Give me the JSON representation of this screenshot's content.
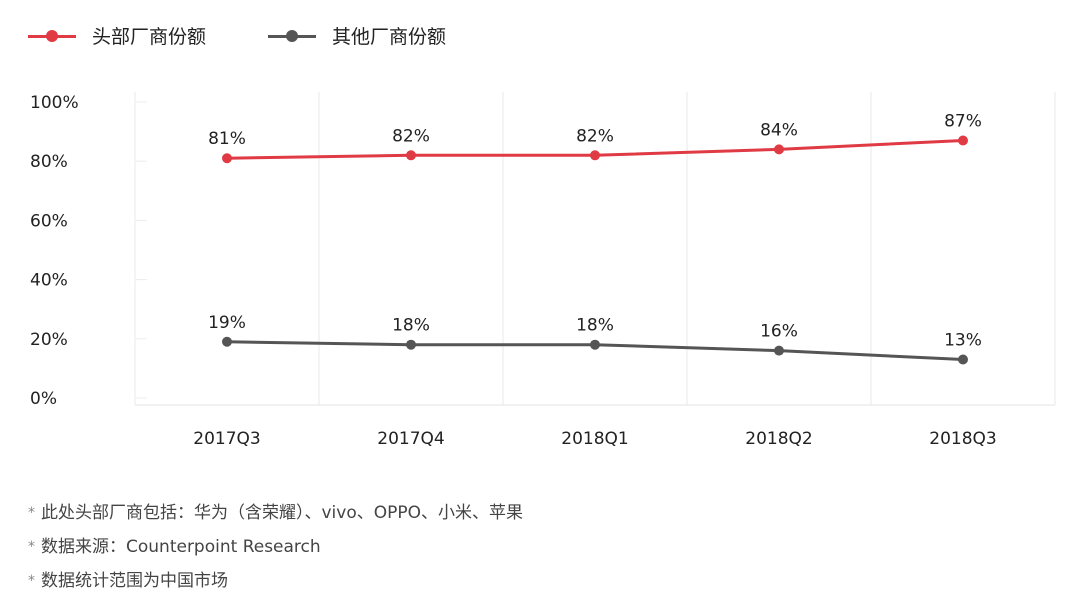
{
  "chart_data": {
    "type": "line",
    "title": "",
    "xlabel": "",
    "ylabel": "",
    "categories": [
      "2017Q3",
      "2017Q4",
      "2018Q1",
      "2018Q2",
      "2018Q3"
    ],
    "ylim": [
      0,
      100
    ],
    "yticks": [
      "0%",
      "20%",
      "40%",
      "60%",
      "80%",
      "100%"
    ],
    "grid": "vertical",
    "legend_position": "top-left",
    "series": [
      {
        "name": "头部厂商份额",
        "color": "#e03a45",
        "values": [
          81,
          82,
          82,
          84,
          87
        ],
        "labels": [
          "81%",
          "82%",
          "82%",
          "84%",
          "87%"
        ]
      },
      {
        "name": "其他厂商份额",
        "color": "#555555",
        "values": [
          19,
          18,
          18,
          16,
          13
        ],
        "labels": [
          "19%",
          "18%",
          "18%",
          "16%",
          "13%"
        ]
      }
    ]
  },
  "notes": [
    "此处头部厂商包括：华为（含荣耀）、vivo、OPPO、小米、苹果",
    "数据来源：Counterpoint Research",
    "数据统计范围为中国市场"
  ],
  "note_marker": "*"
}
